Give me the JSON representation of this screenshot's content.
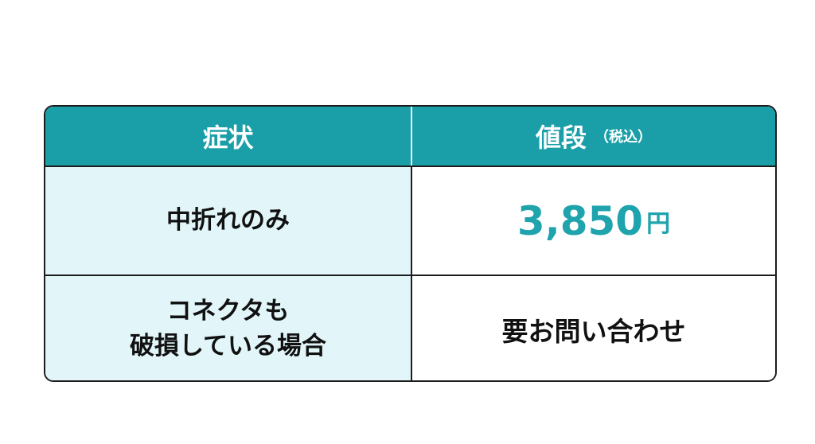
{
  "table": {
    "headers": {
      "symptom": "症状",
      "price": "値段",
      "price_note": "（税込）"
    },
    "rows": [
      {
        "symptom": "中折れのみ",
        "price": "3,850",
        "unit": "円"
      },
      {
        "symptom_line1": "コネクタも",
        "symptom_line2": "破損している場合",
        "price": "要お問い合わせ"
      }
    ]
  },
  "colors": {
    "header": "#1a9fa8",
    "symptom_bg": "#e2f6f9",
    "price": "#1fa3ac"
  }
}
